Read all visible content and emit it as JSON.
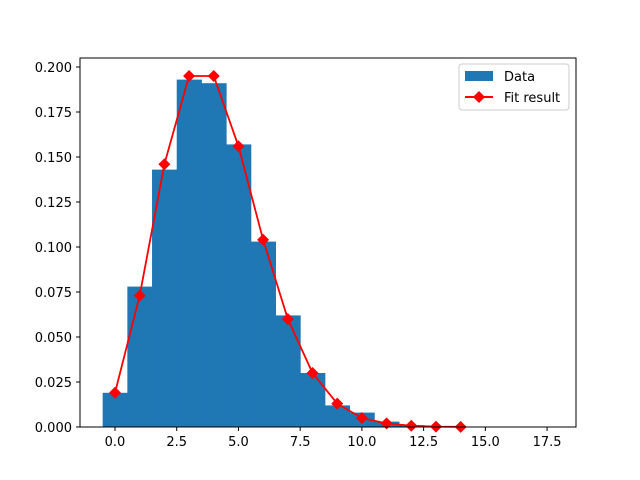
{
  "chart_data": {
    "type": "bar",
    "title": "",
    "xlabel": "",
    "ylabel": "",
    "xlim": [
      -1.45,
      19.0
    ],
    "ylim": [
      0.0,
      0.205
    ],
    "grid": false,
    "legend_position": "upper right",
    "xticks": [
      "0.0",
      "2.5",
      "5.0",
      "7.5",
      "10.0",
      "12.5",
      "15.0",
      "17.5"
    ],
    "xtick_values": [
      0,
      2.5,
      5,
      7.5,
      10,
      12.5,
      15,
      17.5
    ],
    "yticks": [
      "0.000",
      "0.025",
      "0.050",
      "0.075",
      "0.100",
      "0.125",
      "0.150",
      "0.175",
      "0.200"
    ],
    "ytick_values": [
      0,
      0.025,
      0.05,
      0.075,
      0.1,
      0.125,
      0.15,
      0.175,
      0.2
    ],
    "series": [
      {
        "name": "Data",
        "kind": "histogram",
        "color": "#1f77b4",
        "bin_width": 1,
        "x": [
          0,
          1,
          2,
          3,
          4,
          5,
          6,
          7,
          8,
          9,
          10,
          11,
          12,
          13
        ],
        "values": [
          0.019,
          0.078,
          0.143,
          0.193,
          0.191,
          0.157,
          0.103,
          0.062,
          0.03,
          0.012,
          0.008,
          0.003,
          0.001,
          0.0005
        ]
      },
      {
        "name": "Fit result",
        "kind": "line",
        "color": "#ff0000",
        "marker": "diamond",
        "x": [
          0,
          1,
          2,
          3,
          4,
          5,
          6,
          7,
          8,
          9,
          10,
          11,
          12,
          13,
          14
        ],
        "values": [
          0.019,
          0.073,
          0.146,
          0.195,
          0.195,
          0.156,
          0.104,
          0.06,
          0.03,
          0.013,
          0.005,
          0.002,
          0.0007,
          0.0002,
          0.0001
        ]
      }
    ],
    "legend": [
      "Data",
      "Fit result"
    ]
  }
}
